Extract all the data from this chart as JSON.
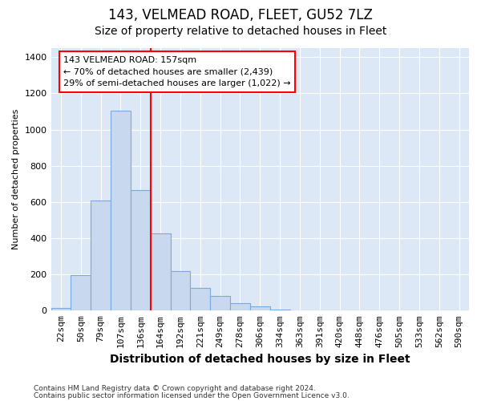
{
  "title": "143, VELMEAD ROAD, FLEET, GU52 7LZ",
  "subtitle": "Size of property relative to detached houses in Fleet",
  "xlabel": "Distribution of detached houses by size in Fleet",
  "ylabel": "Number of detached properties",
  "categories": [
    "22sqm",
    "50sqm",
    "79sqm",
    "107sqm",
    "136sqm",
    "164sqm",
    "192sqm",
    "221sqm",
    "249sqm",
    "278sqm",
    "306sqm",
    "334sqm",
    "363sqm",
    "391sqm",
    "420sqm",
    "448sqm",
    "476sqm",
    "505sqm",
    "533sqm",
    "562sqm",
    "590sqm"
  ],
  "values": [
    15,
    195,
    610,
    1105,
    665,
    425,
    220,
    125,
    80,
    40,
    25,
    5,
    0,
    0,
    0,
    0,
    0,
    0,
    0,
    0,
    0
  ],
  "bar_color": "#c8d8ee",
  "bar_edge_color": "#7aaadd",
  "vline_index": 5,
  "annotation_line1": "143 VELMEAD ROAD: 157sqm",
  "annotation_line2": "← 70% of detached houses are smaller (2,439)",
  "annotation_line3": "29% of semi-detached houses are larger (1,022) →",
  "annotation_box_color": "white",
  "annotation_box_edge": "red",
  "vline_color": "red",
  "ylim": [
    0,
    1450
  ],
  "yticks": [
    0,
    200,
    400,
    600,
    800,
    1000,
    1200,
    1400
  ],
  "bg_color": "#ffffff",
  "plot_bg_color": "#dce8f5",
  "grid_color": "#ffffff",
  "footer_line1": "Contains HM Land Registry data © Crown copyright and database right 2024.",
  "footer_line2": "Contains public sector information licensed under the Open Government Licence v3.0.",
  "title_fontsize": 12,
  "subtitle_fontsize": 10,
  "xlabel_fontsize": 10,
  "ylabel_fontsize": 8,
  "tick_fontsize": 8,
  "annotation_fontsize": 8,
  "footer_fontsize": 6.5
}
